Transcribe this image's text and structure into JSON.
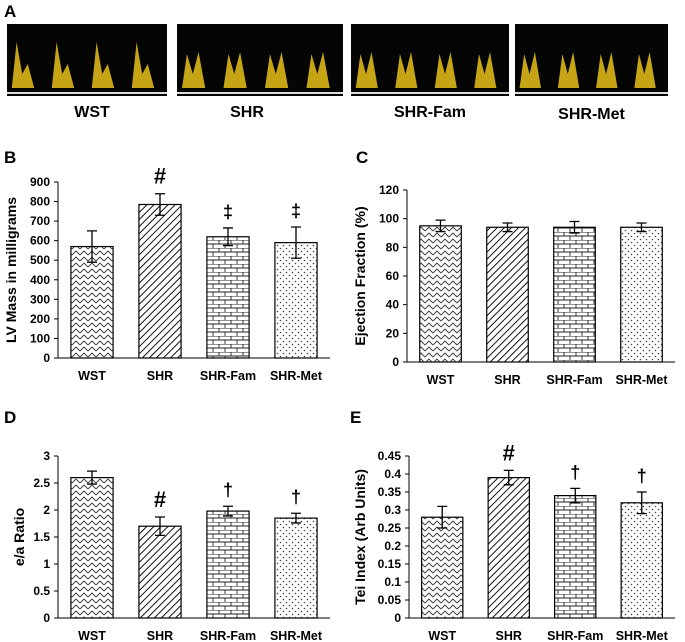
{
  "panels": {
    "a": {
      "letter": "A",
      "labels": [
        "WST",
        "SHR",
        "SHR-Fam",
        "SHR-Met"
      ]
    },
    "b": {
      "letter": "B"
    },
    "c": {
      "letter": "C"
    },
    "d": {
      "letter": "D"
    },
    "e": {
      "letter": "E"
    }
  },
  "colors": {
    "bar_stroke": "#000000",
    "doppler_bg": "#050505",
    "doppler_trace": "#e8c21a"
  },
  "chart_data": [
    {
      "id": "B",
      "type": "bar",
      "ylabel": "LV Mass in milligrams",
      "categories": [
        "WST",
        "SHR",
        "SHR-Fam",
        "SHR-Met"
      ],
      "values": [
        570,
        785,
        620,
        590
      ],
      "errors": [
        80,
        55,
        45,
        80
      ],
      "markers": [
        "",
        "#",
        "‡",
        "‡"
      ],
      "ylim": [
        0,
        900
      ],
      "yticks": [
        "0",
        "100",
        "200",
        "300",
        "400",
        "500",
        "600",
        "700",
        "800",
        "900"
      ],
      "patterns": [
        "zigzag",
        "diagonal",
        "brick",
        "dots"
      ]
    },
    {
      "id": "C",
      "type": "bar",
      "ylabel": "Ejection Fraction (%)",
      "categories": [
        "WST",
        "SHR",
        "SHR-Fam",
        "SHR-Met"
      ],
      "values": [
        95,
        94,
        94,
        94
      ],
      "errors": [
        4,
        3,
        4,
        3
      ],
      "markers": [
        "",
        "",
        "",
        ""
      ],
      "ylim": [
        0,
        120
      ],
      "yticks": [
        "0",
        "20",
        "40",
        "60",
        "80",
        "100",
        "120"
      ],
      "patterns": [
        "zigzag",
        "diagonal",
        "brick",
        "dots"
      ]
    },
    {
      "id": "D",
      "type": "bar",
      "ylabel": "e/a Ratio",
      "categories": [
        "WST",
        "SHR",
        "SHR-Fam",
        "SHR-Met"
      ],
      "values": [
        2.6,
        1.7,
        1.98,
        1.85
      ],
      "errors": [
        0.12,
        0.17,
        0.09,
        0.09
      ],
      "markers": [
        "",
        "#",
        "†",
        "†"
      ],
      "ylim": [
        0,
        3
      ],
      "yticks": [
        "0",
        "0.5",
        "1",
        "1.5",
        "2",
        "2.5",
        "3"
      ],
      "patterns": [
        "zigzag",
        "diagonal",
        "brick",
        "dots"
      ]
    },
    {
      "id": "E",
      "type": "bar",
      "ylabel": "Tei Index (Arb Units)",
      "categories": [
        "WST",
        "SHR",
        "SHR-Fam",
        "SHR-Met"
      ],
      "values": [
        0.28,
        0.39,
        0.34,
        0.32
      ],
      "errors": [
        0.03,
        0.02,
        0.02,
        0.03
      ],
      "markers": [
        "",
        "#",
        "†",
        "†"
      ],
      "ylim": [
        0,
        0.45
      ],
      "yticks": [
        "0",
        "0.05",
        "0.1",
        "0.15",
        "0.2",
        "0.25",
        "0.3",
        "0.35",
        "0.4",
        "0.45"
      ],
      "patterns": [
        "zigzag",
        "diagonal",
        "brick",
        "dots"
      ]
    }
  ]
}
